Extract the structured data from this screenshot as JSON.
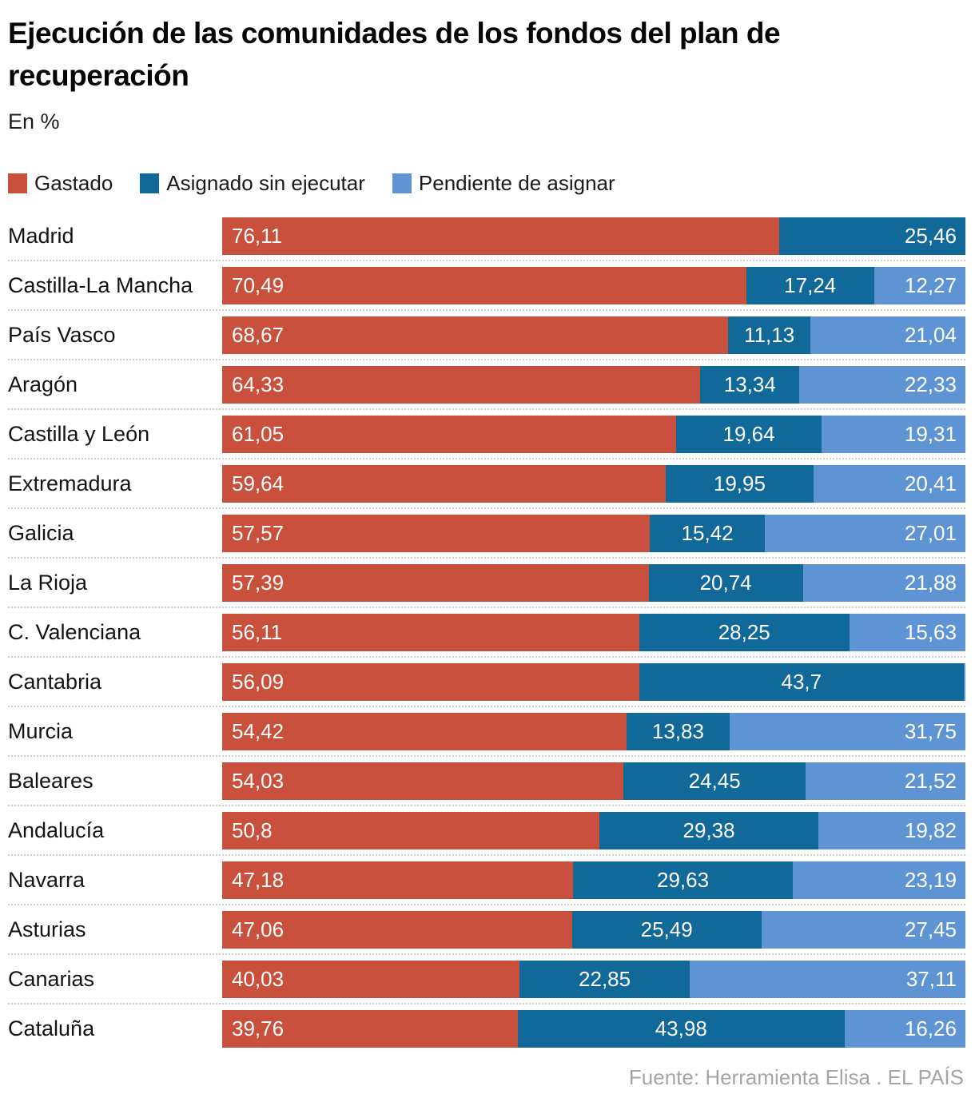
{
  "header": {
    "title": "Ejecución de las comunidades de los fondos del plan de recuperación",
    "subtitle": "En %"
  },
  "legend": {
    "items": [
      {
        "label": "Gastado",
        "color": "#c8503c"
      },
      {
        "label": "Asignado sin ejecutar",
        "color": "#11699a"
      },
      {
        "label": "Pendiente de asignar",
        "color": "#5f94d4"
      }
    ]
  },
  "chart_data": {
    "type": "bar",
    "orientation": "horizontal",
    "stacked": true,
    "unit": "%",
    "title": "Ejecución de las comunidades de los fondos del plan de recuperación",
    "subtitle": "En %",
    "legend_position": "top",
    "series_names": [
      "Gastado",
      "Asignado sin ejecutar",
      "Pendiente de asignar"
    ],
    "series_colors": [
      "#c8503c",
      "#11699a",
      "#5f94d4"
    ],
    "rows": [
      {
        "label": "Madrid",
        "values": [
          76.11,
          25.46,
          null
        ],
        "labels": [
          "76,11",
          "25,46",
          null
        ]
      },
      {
        "label": "Castilla-La Mancha",
        "values": [
          70.49,
          17.24,
          12.27
        ],
        "labels": [
          "70,49",
          "17,24",
          "12,27"
        ]
      },
      {
        "label": "País Vasco",
        "values": [
          68.67,
          11.13,
          21.04
        ],
        "labels": [
          "68,67",
          "11,13",
          "21,04"
        ]
      },
      {
        "label": "Aragón",
        "values": [
          64.33,
          13.34,
          22.33
        ],
        "labels": [
          "64,33",
          "13,34",
          "22,33"
        ]
      },
      {
        "label": "Castilla y León",
        "values": [
          61.05,
          19.64,
          19.31
        ],
        "labels": [
          "61,05",
          "19,64",
          "19,31"
        ]
      },
      {
        "label": "Extremadura",
        "values": [
          59.64,
          19.95,
          20.41
        ],
        "labels": [
          "59,64",
          "19,95",
          "20,41"
        ]
      },
      {
        "label": "Galicia",
        "values": [
          57.57,
          15.42,
          27.01
        ],
        "labels": [
          "57,57",
          "15,42",
          "27,01"
        ]
      },
      {
        "label": "La Rioja",
        "values": [
          57.39,
          20.74,
          21.88
        ],
        "labels": [
          "57,39",
          "20,74",
          "21,88"
        ]
      },
      {
        "label": "C. Valenciana",
        "values": [
          56.11,
          28.25,
          15.63
        ],
        "labels": [
          "56,11",
          "28,25",
          "15,63"
        ]
      },
      {
        "label": "Cantabria",
        "values": [
          56.09,
          43.7,
          0.21
        ],
        "labels": [
          "56,09",
          "43,7",
          null
        ]
      },
      {
        "label": "Murcia",
        "values": [
          54.42,
          13.83,
          31.75
        ],
        "labels": [
          "54,42",
          "13,83",
          "31,75"
        ]
      },
      {
        "label": "Baleares",
        "values": [
          54.03,
          24.45,
          21.52
        ],
        "labels": [
          "54,03",
          "24,45",
          "21,52"
        ]
      },
      {
        "label": "Andalucía",
        "values": [
          50.8,
          29.38,
          19.82
        ],
        "labels": [
          "50,8",
          "29,38",
          "19,82"
        ]
      },
      {
        "label": "Navarra",
        "values": [
          47.18,
          29.63,
          23.19
        ],
        "labels": [
          "47,18",
          "29,63",
          "23,19"
        ]
      },
      {
        "label": "Asturias",
        "values": [
          47.06,
          25.49,
          27.45
        ],
        "labels": [
          "47,06",
          "25,49",
          "27,45"
        ]
      },
      {
        "label": "Canarias",
        "values": [
          40.03,
          22.85,
          37.11
        ],
        "labels": [
          "40,03",
          "22,85",
          "37,11"
        ]
      },
      {
        "label": "Cataluña",
        "values": [
          39.76,
          43.98,
          16.26
        ],
        "labels": [
          "39,76",
          "43,98",
          "16,26"
        ]
      }
    ]
  },
  "footer": {
    "source": "Fuente: Herramienta Elisa . EL PAÍS"
  }
}
